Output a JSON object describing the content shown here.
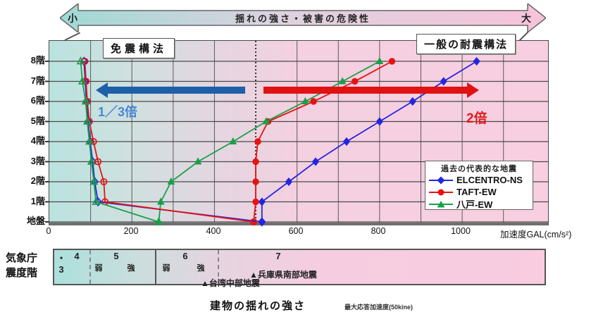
{
  "banner": {
    "title": "揺れの強さ・被害の危険性",
    "left_label": "小",
    "right_label": "大"
  },
  "structures": {
    "isolated_label": "免震構法",
    "conventional_label": "一般の耐震構法",
    "isolated_ratio": "1／3倍",
    "conventional_ratio": "2倍"
  },
  "legend": {
    "title": "過去の代表的な地震",
    "entries": [
      {
        "label": "ELCENTRO-NS",
        "color": "#2525e0",
        "marker": "diamond"
      },
      {
        "label": "TAFT-EW",
        "color": "#e81212",
        "marker": "circle"
      },
      {
        "label": "八戸-EW",
        "color": "#18a049",
        "marker": "triangle"
      }
    ]
  },
  "axes": {
    "x_ticks": [
      "0",
      "200",
      "400",
      "600",
      "800",
      "1000"
    ],
    "x_title": "加速度GAL(cm/s²)",
    "floors": [
      "8階",
      "7階",
      "6階",
      "5階",
      "4階",
      "3階",
      "2階",
      "1階",
      "地盤"
    ]
  },
  "chart_data": {
    "type": "line",
    "title": "建物の揺れの強さ",
    "xlabel": "加速度GAL(cm/s²)",
    "xlim": [
      0,
      1200
    ],
    "x_major_grid": 100,
    "reference_line_x": 500,
    "grid": true,
    "levels": [
      "地盤",
      "1階",
      "2階",
      "3階",
      "4階",
      "5階",
      "6階",
      "7階",
      "8階"
    ],
    "series": [
      {
        "name": "ELCENTRO-NS（一般の耐震構法）",
        "marker": "diamond",
        "fill": "solid",
        "color": "#2525e0",
        "values": [
          515,
          515,
          580,
          645,
          720,
          800,
          880,
          955,
          1035
        ]
      },
      {
        "name": "TAFT-EW（一般の耐震構法）",
        "marker": "circle",
        "fill": "solid",
        "color": "#e81212",
        "values": [
          495,
          500,
          500,
          500,
          505,
          530,
          640,
          740,
          830
        ]
      },
      {
        "name": "八戸-EW（一般の耐震構法）",
        "marker": "triangle",
        "fill": "solid",
        "color": "#18a049",
        "values": [
          265,
          270,
          295,
          360,
          445,
          525,
          620,
          710,
          800
        ]
      },
      {
        "name": "ELCENTRO-NS（免震構法）",
        "marker": "diamond",
        "fill": "open",
        "color": "#2525e0",
        "values": [
          515,
          118,
          110,
          105,
          99,
          94,
          90,
          87,
          84
        ]
      },
      {
        "name": "TAFT-EW（免震構法）",
        "marker": "circle",
        "fill": "open",
        "color": "#e81212",
        "values": [
          495,
          135,
          132,
          118,
          107,
          97,
          92,
          89,
          86
        ]
      },
      {
        "name": "八戸-EW（免震構法）",
        "marker": "triangle",
        "fill": "open",
        "color": "#18a049",
        "values": [
          265,
          113,
          108,
          102,
          97,
          92,
          88,
          80,
          76
        ]
      }
    ]
  },
  "intensity": {
    "header_line1": "気象庁",
    "header_line2": "震度階",
    "v3": "・3",
    "v4": "4",
    "v5": "5",
    "v6": "6",
    "v7": "7",
    "weak": "弱",
    "strong": "強",
    "quake1": "▲兵庫県南部地震",
    "quake2": "▲台湾中部地震"
  },
  "captions": {
    "title": "建物の揺れの強さ",
    "note": "最大応答加速度(50kine)"
  },
  "colors": {
    "arrow_left": "#1d5fa8",
    "arrow_right": "#e01212",
    "ratio_left_text": "#4a86d8",
    "ratio_right_text": "#e01a1a"
  }
}
